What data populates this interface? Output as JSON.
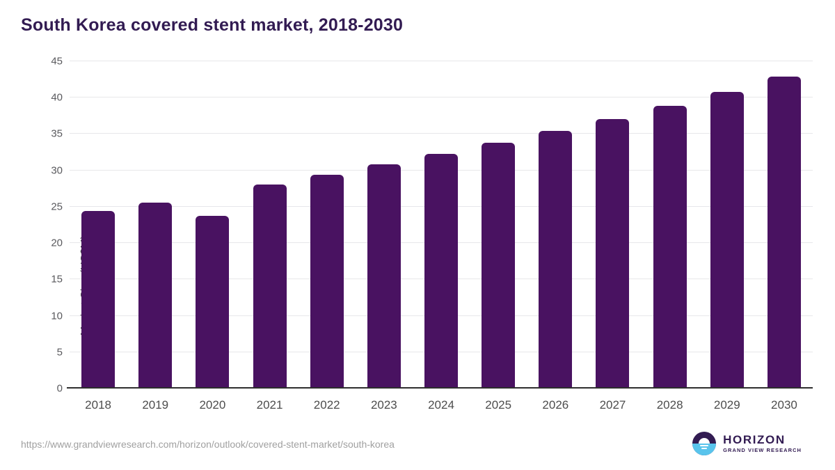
{
  "page": {
    "title": "South Korea covered stent market, 2018-2030",
    "source_url": "https://www.grandviewresearch.com/horizon/outlook/covered-stent-market/south-korea"
  },
  "logo": {
    "name": "HORIZON",
    "subtitle": "GRAND VIEW RESEARCH",
    "icon": "horizon-sun-over-sea-icon"
  },
  "colors": {
    "bar": "#491261",
    "title_text": "#321b52",
    "x_label": "#4d4d4d",
    "y_tick": "#5a5a5e",
    "y_axis_title": "#3f3f44",
    "gridline": "#e7e7ea",
    "baseline": "#2e2e2e",
    "url_text": "#a0a0a0",
    "logo_purple": "#321b52",
    "logo_blue": "#59c4ec"
  },
  "chart_data": {
    "type": "bar",
    "title": "South Korea covered stent market, 2018-2030",
    "categories": [
      "2018",
      "2019",
      "2020",
      "2021",
      "2022",
      "2023",
      "2024",
      "2025",
      "2026",
      "2027",
      "2028",
      "2029",
      "2030"
    ],
    "values": [
      24.4,
      25.6,
      23.7,
      28.1,
      29.4,
      30.8,
      32.3,
      33.8,
      35.4,
      37.1,
      38.9,
      40.8,
      42.9
    ],
    "xlabel": "",
    "ylabel": "Market Size (US$M)",
    "ylim": [
      0,
      45
    ],
    "yticks": [
      0,
      5,
      10,
      15,
      20,
      25,
      30,
      35,
      40,
      45
    ],
    "grid": "horizontal",
    "legend": "none",
    "bar_color": "#491261"
  }
}
